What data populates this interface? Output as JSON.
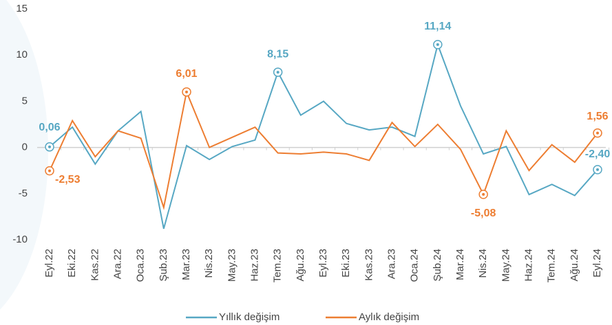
{
  "chart_data": {
    "type": "line",
    "categories": [
      "Eyl.22",
      "Eki.22",
      "Kas.22",
      "Ara.22",
      "Oca.23",
      "Şub.23",
      "Mar.23",
      "Nis.23",
      "May.23",
      "Haz.23",
      "Tem.23",
      "Ağu.23",
      "Eyl.23",
      "Eki.23",
      "Kas.23",
      "Ara.23",
      "Oca.24",
      "Şub.24",
      "Mar.24",
      "Nis.24",
      "May.24",
      "Haz.24",
      "Tem.24",
      "Ağu.24",
      "Eyl.24"
    ],
    "series": [
      {
        "name": "Yıllık değişim",
        "color": "#56a7c3",
        "values": [
          0.06,
          2.2,
          -1.8,
          1.8,
          3.9,
          -8.8,
          0.2,
          -1.3,
          0.1,
          0.8,
          8.15,
          3.5,
          5.0,
          2.6,
          1.9,
          2.2,
          1.2,
          11.14,
          4.5,
          -0.7,
          0.1,
          -5.1,
          -4.0,
          -5.2,
          -2.4
        ],
        "value_labels": [
          "0,06",
          null,
          null,
          null,
          null,
          null,
          null,
          null,
          null,
          null,
          "8,15",
          null,
          null,
          null,
          null,
          null,
          null,
          "11,14",
          null,
          null,
          null,
          null,
          null,
          null,
          "-2,40"
        ]
      },
      {
        "name": "Aylık değişim",
        "color": "#ed7d31",
        "values": [
          -2.53,
          2.9,
          -1.0,
          1.8,
          1.0,
          -6.5,
          6.01,
          0,
          1.1,
          2.2,
          -0.6,
          -0.7,
          -0.5,
          -0.7,
          -1.4,
          2.7,
          0.1,
          2.5,
          -0.2,
          -5.08,
          1.8,
          -2.5,
          0.3,
          -1.6,
          1.56
        ],
        "value_labels": [
          "-2,53",
          null,
          null,
          null,
          null,
          null,
          "6,01",
          null,
          null,
          null,
          null,
          null,
          null,
          null,
          null,
          null,
          null,
          null,
          null,
          "-5,08",
          null,
          null,
          null,
          null,
          "1,56"
        ]
      }
    ],
    "ylim": [
      -10,
      15
    ],
    "yticks": [
      15,
      10,
      5,
      0,
      -5,
      -10
    ],
    "legend": "bottom"
  }
}
